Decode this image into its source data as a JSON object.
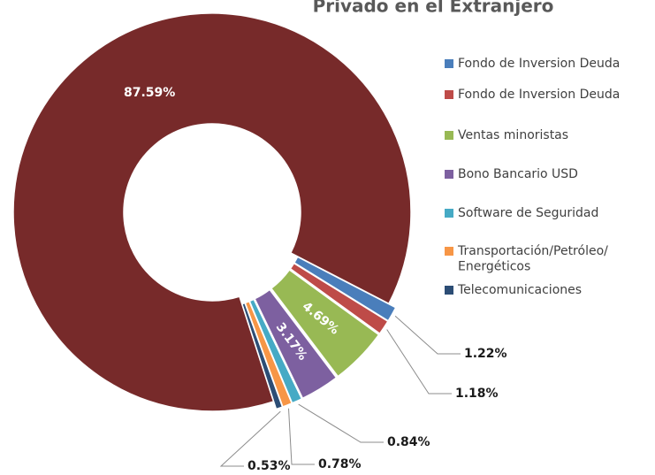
{
  "chart_data": {
    "type": "donut",
    "title": "Privado en el Extranjero",
    "categories": [
      null,
      "Fondo de Inversion Deuda",
      "Fondo de Inversion Deuda",
      "Ventas minoristas",
      "Bono Bancario USD",
      "Software de Seguridad",
      "Transportación/Petróleo/\nEnergéticos",
      "Telecomunicaciones"
    ],
    "values": [
      87.59,
      1.22,
      1.18,
      4.69,
      3.17,
      0.84,
      0.78,
      0.53
    ],
    "value_labels": [
      "87.59%",
      "1.22%",
      "1.18%",
      "4.69%",
      "3.17%",
      "0.84%",
      "0.78%",
      "0.53%"
    ],
    "colors": [
      "#772a2a",
      "#4a7ebb",
      "#be4b48",
      "#98b954",
      "#7d60a0",
      "#46aac5",
      "#f79646",
      "#2c4d75"
    ],
    "legend": "right"
  }
}
